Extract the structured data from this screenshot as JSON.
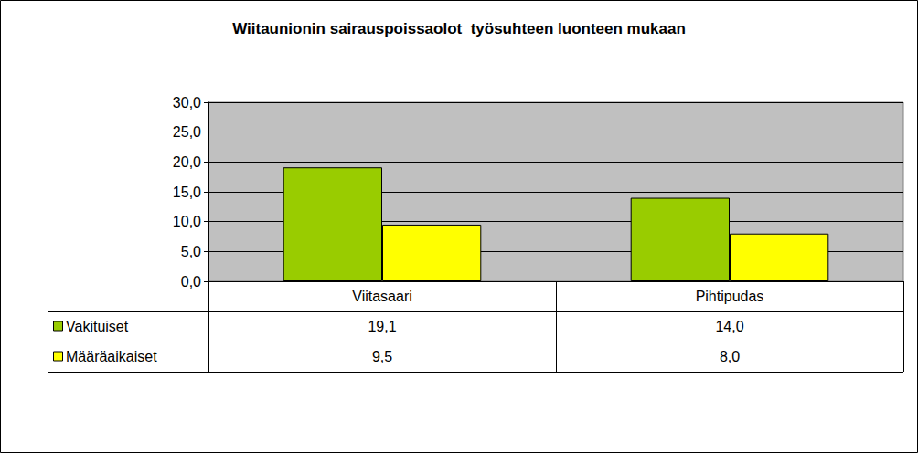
{
  "chart_data": {
    "type": "bar",
    "title": "Wiitaunionin sairauspoissaolot  työsuhteen luonteen mukaan",
    "categories": [
      "Viitasaari",
      "Pihtipudas"
    ],
    "series": [
      {
        "name": "Vakituiset",
        "color": "#99cc00",
        "values": [
          19.1,
          14.0
        ],
        "value_labels": [
          "19,1",
          "14,0"
        ]
      },
      {
        "name": "Määräaikaiset",
        "color": "#ffff00",
        "values": [
          9.5,
          8.0
        ],
        "value_labels": [
          "9,5",
          "8,0"
        ]
      }
    ],
    "ylim": [
      0,
      30
    ],
    "yticks": [
      {
        "value": 0,
        "label": "0,0"
      },
      {
        "value": 5,
        "label": "5,0"
      },
      {
        "value": 10,
        "label": "10,0"
      },
      {
        "value": 15,
        "label": "15,0"
      },
      {
        "value": 20,
        "label": "20,0"
      },
      {
        "value": 25,
        "label": "25,0"
      },
      {
        "value": 30,
        "label": "30,0"
      }
    ],
    "grid": true
  }
}
